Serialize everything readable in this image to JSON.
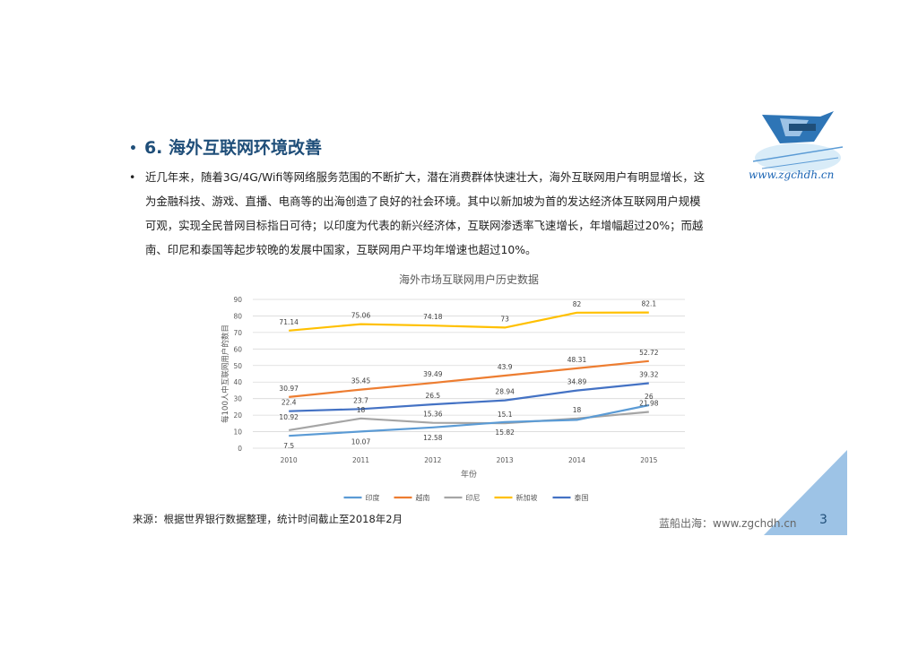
{
  "heading": {
    "bullet": "•",
    "text": "6. 海外互联网环境改善"
  },
  "paragraph": {
    "bullet": "•",
    "lines": [
      "近几年来，随着3G/4G/Wifi等网络服务范围的不断扩大，潜在消费群体快速壮大，海外互联网用户有明显增长，这",
      "为金融科技、游戏、直播、电商等的出海创造了良好的社会环境。其中以新加坡为首的发达经济体互联网用户规模",
      "可观，实现全民普网目标指日可待；以印度为代表的新兴经济体，互联网渗透率飞速增长，年增幅超过20%；而越",
      "南、印尼和泰国等起步较晚的发展中国家，互联网用户平均年增速也超过10%。"
    ]
  },
  "logo": {
    "site_text": "www.zgchdh.cn"
  },
  "chart_data": {
    "type": "line",
    "title": "海外市场互联网用户历史数据",
    "xlabel": "年份",
    "ylabel": "每100人中互联网用户的数目",
    "ylim": [
      0,
      90
    ],
    "yticks": [
      "0",
      "10",
      "20",
      "30",
      "40",
      "50",
      "60",
      "70",
      "80",
      "90"
    ],
    "categories": [
      "2010",
      "2011",
      "2012",
      "2013",
      "2014",
      "2015"
    ],
    "grid": true,
    "legend_position": "bottom",
    "series": [
      {
        "name": "印度",
        "color": "#5b9bd5",
        "values": [
          7.5,
          10.07,
          12.58,
          15.82,
          17.14,
          26
        ],
        "labels": [
          "7.5",
          "10.07",
          "12.58",
          "15.82",
          "",
          "26"
        ],
        "label_pos": "below"
      },
      {
        "name": "越南",
        "color": "#ed7d31",
        "values": [
          30.97,
          35.45,
          39.49,
          43.9,
          48.31,
          52.72
        ],
        "labels": [
          "30.97",
          "35.45",
          "39.49",
          "43.9",
          "48.31",
          "52.72"
        ],
        "label_pos": "above"
      },
      {
        "name": "印尼",
        "color": "#a5a5a5",
        "values": [
          10.92,
          18,
          15.36,
          15.1,
          18,
          21.98
        ],
        "labels": [
          "10.92",
          "18",
          "15.36",
          "15.1",
          "18",
          "21.98"
        ],
        "label_pos": "mixed"
      },
      {
        "name": "新加坡",
        "color": "#ffc000",
        "values": [
          71.14,
          75.06,
          74.18,
          73,
          82,
          82.1
        ],
        "labels": [
          "71.14",
          "75.06",
          "74.18",
          "73",
          "82",
          "82.1"
        ],
        "label_pos": "above"
      },
      {
        "name": "泰国",
        "color": "#4472c4",
        "values": [
          22.4,
          23.7,
          26.5,
          28.94,
          34.89,
          39.32
        ],
        "labels": [
          "22.4",
          "23.7",
          "26.5",
          "28.94",
          "34.89",
          "39.32"
        ],
        "label_pos": "above"
      }
    ]
  },
  "source": "来源：根据世界银行数据整理，统计时间截止至2018年2月",
  "footer": {
    "site": "蓝船出海：www.zgchdh.cn",
    "page": "3"
  },
  "colors": {
    "accent": "#1f4e79",
    "corner": "#9dc3e6"
  }
}
